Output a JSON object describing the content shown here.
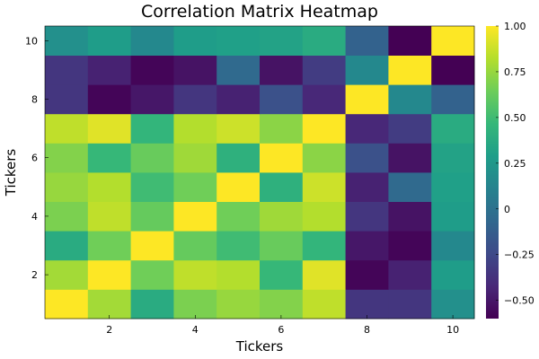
{
  "chart_data": {
    "type": "heatmap",
    "title": "Correlation Matrix Heatmap",
    "xlabel": "Tickers",
    "ylabel": "Tickers",
    "x": [
      1,
      2,
      3,
      4,
      5,
      6,
      7,
      8,
      9,
      10
    ],
    "y": [
      1,
      2,
      3,
      4,
      5,
      6,
      7,
      8,
      9,
      10
    ],
    "x_ticks": [
      "2",
      "4",
      "6",
      "8",
      "10"
    ],
    "y_ticks": [
      "2",
      "4",
      "6",
      "8",
      "10"
    ],
    "z": [
      [
        1.0,
        0.78,
        0.38,
        0.68,
        0.75,
        0.7,
        0.85,
        -0.35,
        -0.35,
        0.2
      ],
      [
        0.78,
        1.0,
        0.65,
        0.85,
        0.82,
        0.47,
        0.93,
        -0.58,
        -0.45,
        0.28
      ],
      [
        0.38,
        0.65,
        1.0,
        0.62,
        0.5,
        0.63,
        0.45,
        -0.5,
        -0.58,
        0.15
      ],
      [
        0.68,
        0.85,
        0.62,
        1.0,
        0.65,
        0.77,
        0.82,
        -0.35,
        -0.52,
        0.28
      ],
      [
        0.75,
        0.82,
        0.5,
        0.65,
        1.0,
        0.42,
        0.88,
        -0.45,
        -0.05,
        0.3
      ],
      [
        0.7,
        0.47,
        0.63,
        0.77,
        0.42,
        1.0,
        0.72,
        -0.2,
        -0.52,
        0.32
      ],
      [
        0.85,
        0.93,
        0.45,
        0.82,
        0.88,
        0.72,
        1.0,
        -0.42,
        -0.32,
        0.38
      ],
      [
        -0.35,
        -0.58,
        -0.5,
        -0.35,
        -0.45,
        -0.2,
        -0.42,
        1.0,
        0.15,
        -0.1
      ],
      [
        -0.35,
        -0.45,
        -0.58,
        -0.52,
        -0.05,
        -0.52,
        -0.32,
        0.15,
        1.0,
        -0.6
      ],
      [
        0.2,
        0.28,
        0.15,
        0.28,
        0.3,
        0.32,
        0.38,
        -0.1,
        -0.6,
        1.0
      ]
    ],
    "colorbar": {
      "range": [
        -0.6,
        1.0
      ],
      "ticks": [
        "1.00",
        "0.75",
        "0.50",
        "0.25",
        "0",
        "−0.25",
        "−0.50"
      ],
      "tick_values": [
        1.0,
        0.75,
        0.5,
        0.25,
        0,
        -0.25,
        -0.5
      ],
      "colormap": "viridis",
      "stops": [
        "#440154",
        "#482878",
        "#3e4a89",
        "#31688e",
        "#26828e",
        "#1f9e89",
        "#35b779",
        "#6dcd59",
        "#b4de2c",
        "#fde725"
      ]
    },
    "grid": false
  }
}
